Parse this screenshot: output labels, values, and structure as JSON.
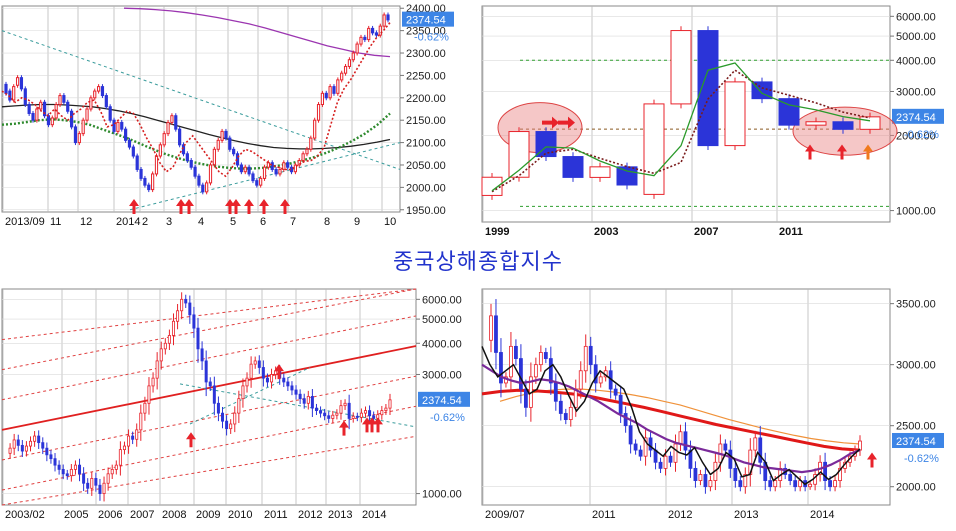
{
  "title": "중국상해종합지수",
  "colors": {
    "up": "#e8232b",
    "down": "#2b34d8",
    "grid": "#b9b9b9",
    "badge": "#3d85e6",
    "arrow": "#e8232b",
    "arrow_alt": "#f07a1e",
    "title": "#2233cc"
  },
  "chart_data": [
    {
      "id": "tl",
      "type": "candlestick",
      "period": "daily",
      "x_tick_labels": [
        "2013/09",
        "11",
        "12",
        "2014",
        "2",
        "3",
        "4",
        "5",
        "6",
        "7",
        "8",
        "9",
        "10"
      ],
      "y_tick_labels": [
        "2400.00",
        "2350.00",
        "2300.00",
        "2250.00",
        "2200.00",
        "2150.00",
        "2100.00",
        "2050.00",
        "2000.00",
        "1950.00"
      ],
      "ylim": [
        1945,
        2405
      ],
      "y_scale": "linear",
      "last_price": "2374.54",
      "change": "-0.62%",
      "grid": true,
      "candles": [
        [
          2230,
          2210
        ],
        [
          2215,
          2195
        ],
        [
          2195,
          2225
        ],
        [
          2228,
          2245
        ],
        [
          2245,
          2220
        ],
        [
          2220,
          2185
        ],
        [
          2185,
          2165
        ],
        [
          2165,
          2150
        ],
        [
          2150,
          2175
        ],
        [
          2175,
          2190
        ],
        [
          2190,
          2160
        ],
        [
          2160,
          2140
        ],
        [
          2140,
          2155
        ],
        [
          2155,
          2185
        ],
        [
          2185,
          2205
        ],
        [
          2205,
          2190
        ],
        [
          2190,
          2170
        ],
        [
          2170,
          2135
        ],
        [
          2135,
          2100
        ],
        [
          2100,
          2120
        ],
        [
          2120,
          2150
        ],
        [
          2150,
          2175
        ],
        [
          2175,
          2200
        ],
        [
          2200,
          2215
        ],
        [
          2215,
          2225
        ],
        [
          2225,
          2205
        ],
        [
          2205,
          2180
        ],
        [
          2180,
          2150
        ],
        [
          2150,
          2125
        ],
        [
          2125,
          2145
        ],
        [
          2145,
          2130
        ],
        [
          2130,
          2105
        ],
        [
          2105,
          2090
        ],
        [
          2090,
          2070
        ],
        [
          2070,
          2040
        ],
        [
          2040,
          2020
        ],
        [
          2020,
          2005
        ],
        [
          2005,
          1995
        ],
        [
          1995,
          2030
        ],
        [
          2030,
          2070
        ],
        [
          2070,
          2095
        ],
        [
          2095,
          2120
        ],
        [
          2120,
          2145
        ],
        [
          2145,
          2160
        ],
        [
          2160,
          2130
        ],
        [
          2130,
          2095
        ],
        [
          2095,
          2075
        ],
        [
          2075,
          2060
        ],
        [
          2060,
          2045
        ],
        [
          2045,
          2025
        ],
        [
          2025,
          2005
        ],
        [
          2005,
          1990
        ],
        [
          1990,
          2010
        ],
        [
          2010,
          2050
        ],
        [
          2050,
          2085
        ],
        [
          2085,
          2105
        ],
        [
          2105,
          2125
        ],
        [
          2125,
          2110
        ],
        [
          2110,
          2085
        ],
        [
          2085,
          2075
        ],
        [
          2075,
          2050
        ],
        [
          2050,
          2035
        ],
        [
          2035,
          2045
        ],
        [
          2045,
          2030
        ],
        [
          2030,
          2015
        ],
        [
          2015,
          2005
        ],
        [
          2005,
          2020
        ],
        [
          2020,
          2045
        ],
        [
          2045,
          2055
        ],
        [
          2055,
          2040
        ],
        [
          2040,
          2030
        ],
        [
          2030,
          2040
        ],
        [
          2040,
          2055
        ],
        [
          2055,
          2045
        ],
        [
          2045,
          2035
        ],
        [
          2035,
          2050
        ],
        [
          2050,
          2060
        ],
        [
          2060,
          2075
        ],
        [
          2075,
          2085
        ],
        [
          2085,
          2110
        ],
        [
          2110,
          2150
        ],
        [
          2150,
          2185
        ],
        [
          2185,
          2210
        ],
        [
          2210,
          2200
        ],
        [
          2200,
          2225
        ],
        [
          2225,
          2210
        ],
        [
          2210,
          2240
        ],
        [
          2240,
          2255
        ],
        [
          2255,
          2270
        ],
        [
          2270,
          2285
        ],
        [
          2285,
          2300
        ],
        [
          2300,
          2320
        ],
        [
          2320,
          2335
        ],
        [
          2335,
          2330
        ],
        [
          2330,
          2355
        ],
        [
          2355,
          2345
        ],
        [
          2345,
          2340
        ],
        [
          2340,
          2360
        ],
        [
          2360,
          2385
        ],
        [
          2385,
          2374
        ]
      ],
      "ma_short_dotted": [
        2215,
        2205,
        2190,
        2200,
        2195,
        2185,
        2170,
        2160,
        2175,
        2160,
        2150,
        2165,
        2175,
        2190,
        2195,
        2170,
        2135,
        2140,
        2155,
        2170,
        2165,
        2140,
        2110,
        2085,
        2055,
        2035,
        2045,
        2075,
        2100,
        2115,
        2095,
        2075,
        2055,
        2035,
        2025,
        2045,
        2070,
        2085,
        2080,
        2070,
        2060,
        2050,
        2045,
        2040,
        2040,
        2050,
        2058,
        2060,
        2070,
        2090,
        2140,
        2190,
        2220,
        2240,
        2265,
        2290,
        2315,
        2335,
        2350,
        2368
      ],
      "ma_long": [
        2180,
        2182,
        2184,
        2185,
        2185,
        2184,
        2182,
        2180,
        2176,
        2171,
        2165,
        2158,
        2150,
        2142,
        2134,
        2126,
        2118,
        2111,
        2104,
        2098,
        2093,
        2089,
        2087,
        2086,
        2086,
        2087,
        2089,
        2092,
        2096,
        2101,
        2107
      ],
      "ma_green_dotted": [
        2140,
        2142,
        2146,
        2150,
        2152,
        2150,
        2146,
        2140,
        2130,
        2120,
        2110,
        2098,
        2086,
        2075,
        2066,
        2058,
        2052,
        2047,
        2044,
        2042,
        2042,
        2044,
        2048,
        2053,
        2060,
        2068,
        2078,
        2090,
        2104,
        2120,
        2140,
        2165
      ],
      "ma_200_purple": [
        2400,
        2399,
        2397,
        2394,
        2390,
        2385,
        2379,
        2372,
        2365,
        2356,
        2346,
        2336,
        2326,
        2316,
        2308,
        2300,
        2295,
        2292
      ]
    },
    {
      "id": "tr",
      "type": "candlestick",
      "period": "yearly",
      "x_tick_labels": [
        "1999",
        "2003",
        "2007",
        "2011"
      ],
      "y_tick_labels": [
        "6000.00",
        "5000.00",
        "4000.00",
        "3000.00",
        "2000.00",
        "1000.00"
      ],
      "ylim": [
        900,
        6600
      ],
      "y_scale": "log",
      "last_price": "2374.54",
      "change": "-0.62%",
      "grid": true,
      "horizontal_levels": [
        4000,
        2120,
        1040
      ],
      "candles": [
        [
          1150,
          1360
        ],
        [
          1360,
          2073
        ],
        [
          2073,
          1646
        ],
        [
          1646,
          1358
        ],
        [
          1358,
          1497
        ],
        [
          1497,
          1266
        ],
        [
          1161,
          2675
        ],
        [
          2675,
          5262
        ],
        [
          5262,
          1821
        ],
        [
          1821,
          3277
        ],
        [
          3277,
          2808
        ],
        [
          2808,
          2199
        ],
        [
          2199,
          2269
        ],
        [
          2269,
          2116
        ],
        [
          2116,
          2374
        ]
      ],
      "ma_green": [
        1200,
        1450,
        1800,
        1780,
        1580,
        1440,
        1380,
        1820,
        3650,
        3900,
        2950,
        2650,
        2530,
        2380,
        2290
      ],
      "ma_dotted": [
        1190,
        1380,
        1700,
        1760,
        1620,
        1500,
        1410,
        1560,
        2800,
        3650,
        3100,
        2900,
        2700,
        2480,
        2350
      ]
    },
    {
      "id": "bl",
      "type": "candlestick",
      "period": "monthly",
      "x_tick_labels": [
        "2003/02",
        "2005",
        "2006",
        "2007",
        "2008",
        "2009",
        "2010",
        "2011",
        "2012",
        "2013",
        "2014"
      ],
      "y_tick_labels": [
        "6000.00",
        "5000.00",
        "4000.00",
        "3000.00",
        "1000.00"
      ],
      "ylim": [
        900,
        6600
      ],
      "y_scale": "log",
      "last_price": "2374.54",
      "change": "-0.62%",
      "grid": true,
      "price_path": [
        1450,
        1520,
        1640,
        1560,
        1480,
        1550,
        1620,
        1700,
        1600,
        1520,
        1430,
        1380,
        1300,
        1250,
        1200,
        1180,
        1250,
        1300,
        1200,
        1100,
        1050,
        1150,
        1080,
        1000,
        1100,
        1200,
        1250,
        1300,
        1500,
        1550,
        1700,
        1650,
        1800,
        2100,
        2300,
        2700,
        2900,
        3400,
        3800,
        4000,
        4300,
        4900,
        5400,
        6000,
        5800,
        5200,
        4600,
        3800,
        3400,
        2800,
        2700,
        2300,
        2100,
        1950,
        1820,
        1900,
        2100,
        2400,
        2700,
        2900,
        3300,
        3400,
        3200,
        2900,
        2800,
        3000,
        3100,
        2900,
        2800,
        2700,
        2600,
        2500,
        2400,
        2300,
        2450,
        2200,
        2150,
        2100,
        2050,
        2000,
        2060,
        2100,
        2250,
        2300,
        2000,
        2040,
        2020,
        2100,
        2150,
        2050,
        2000,
        2070,
        2150,
        2200,
        2374
      ]
    },
    {
      "id": "br",
      "type": "candlestick",
      "period": "weekly",
      "x_tick_labels": [
        "2009/07",
        "2011",
        "2012",
        "2013",
        "2014"
      ],
      "y_tick_labels": [
        "3500.00",
        "3000.00",
        "2500.00",
        "2000.00"
      ],
      "ylim": [
        1850,
        3620
      ],
      "y_scale": "linear",
      "last_price": "2374.54",
      "change": "-0.62%",
      "grid": true,
      "price_path": [
        3200,
        3400,
        3100,
        2850,
        2900,
        3150,
        3050,
        2800,
        2650,
        2900,
        3000,
        3100,
        3050,
        2850,
        2700,
        2600,
        2550,
        2650,
        2800,
        2950,
        3150,
        3000,
        2850,
        2900,
        2950,
        2800,
        2750,
        2600,
        2500,
        2350,
        2300,
        2250,
        2400,
        2300,
        2200,
        2150,
        2250,
        2200,
        2350,
        2450,
        2300,
        2150,
        2050,
        2100,
        2000,
        2050,
        2200,
        2350,
        2300,
        2150,
        2050,
        2000,
        2100,
        2300,
        2400,
        2200,
        2050,
        2000,
        2050,
        2150,
        2100,
        2050,
        2000,
        2050,
        2000,
        2020,
        2100,
        2200,
        2050,
        2000,
        2050,
        2150,
        2200,
        2250,
        2300,
        2374
      ],
      "ma_black": [
        3150,
        3000,
        2900,
        2950,
        3000,
        2880,
        2760,
        2800,
        2950,
        3000,
        2900,
        2750,
        2620,
        2700,
        2850,
        2950,
        2900,
        2850,
        2800,
        2650,
        2450,
        2350,
        2300,
        2250,
        2330,
        2280,
        2260,
        2320,
        2200,
        2100,
        2150,
        2280,
        2230,
        2080,
        2100,
        2280,
        2200,
        2050,
        2100,
        2140,
        2080,
        2020,
        2060,
        2120,
        2060,
        2100,
        2180,
        2250,
        2310
      ],
      "ma_purple": [
        3000,
        2950,
        2900,
        2870,
        2850,
        2860,
        2880,
        2870,
        2850,
        2820,
        2780,
        2740,
        2700,
        2650,
        2600,
        2560,
        2520,
        2470,
        2430,
        2390,
        2360,
        2340,
        2320,
        2300,
        2280,
        2260,
        2230,
        2200,
        2180,
        2160,
        2150,
        2140,
        2130,
        2120,
        2130,
        2150,
        2180,
        2220,
        2270,
        2300
      ],
      "ma_red_thick": [
        2760,
        2780,
        2790,
        2785,
        2775,
        2760,
        2740,
        2710,
        2680,
        2650,
        2615,
        2580,
        2545,
        2510,
        2480,
        2450,
        2420,
        2390,
        2360,
        2330,
        2310,
        2300
      ],
      "ma_orange": [
        2700,
        2740,
        2770,
        2790,
        2800,
        2800,
        2790,
        2775,
        2755,
        2730,
        2700,
        2670,
        2630,
        2590,
        2550,
        2515,
        2480,
        2450,
        2420,
        2395,
        2375,
        2360,
        2350
      ]
    }
  ]
}
